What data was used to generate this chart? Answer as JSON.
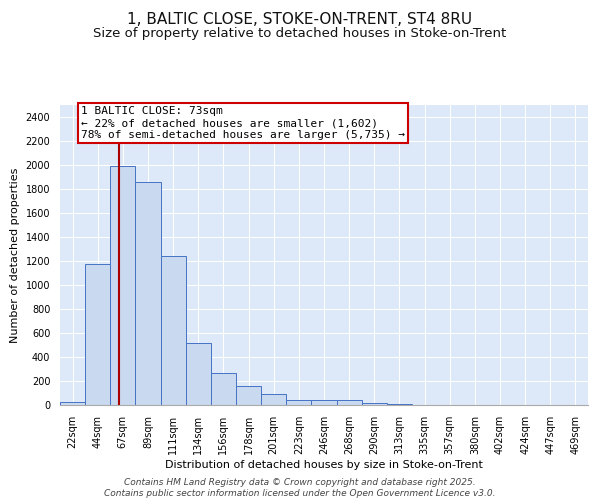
{
  "title1": "1, BALTIC CLOSE, STOKE-ON-TRENT, ST4 8RU",
  "title2": "Size of property relative to detached houses in Stoke-on-Trent",
  "xlabel": "Distribution of detached houses by size in Stoke-on-Trent",
  "ylabel": "Number of detached properties",
  "categories": [
    "22sqm",
    "44sqm",
    "67sqm",
    "89sqm",
    "111sqm",
    "134sqm",
    "156sqm",
    "178sqm",
    "201sqm",
    "223sqm",
    "246sqm",
    "268sqm",
    "290sqm",
    "313sqm",
    "335sqm",
    "357sqm",
    "380sqm",
    "402sqm",
    "424sqm",
    "447sqm",
    "469sqm"
  ],
  "values": [
    25,
    1175,
    1995,
    1860,
    1240,
    520,
    270,
    155,
    90,
    45,
    38,
    38,
    20,
    8,
    3,
    2,
    2,
    1,
    1,
    1,
    1
  ],
  "bar_color": "#c9d9ef",
  "bar_edge_color": "#4472c4",
  "background_color": "#dde8f8",
  "grid_color": "#ffffff",
  "vline_color": "#aa0000",
  "annotation_text": "1 BALTIC CLOSE: 73sqm\n← 22% of detached houses are smaller (1,602)\n78% of semi-detached houses are larger (5,735) →",
  "annotation_box_color": "#cc0000",
  "ylim": [
    0,
    2500
  ],
  "yticks": [
    0,
    200,
    400,
    600,
    800,
    1000,
    1200,
    1400,
    1600,
    1800,
    2000,
    2200,
    2400
  ],
  "footer1": "Contains HM Land Registry data © Crown copyright and database right 2025.",
  "footer2": "Contains public sector information licensed under the Open Government Licence v3.0.",
  "title_fontsize": 11,
  "subtitle_fontsize": 9.5,
  "label_fontsize": 8,
  "tick_fontsize": 7,
  "footer_fontsize": 6.5,
  "annotation_fontsize": 8
}
